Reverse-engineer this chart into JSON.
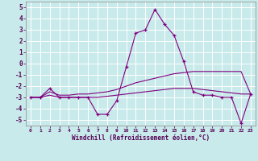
{
  "xlabel": "Windchill (Refroidissement éolien,°C)",
  "background_color": "#c8eaea",
  "grid_color": "#b8d8d8",
  "line_color": "#800080",
  "xlim": [
    -0.5,
    23.5
  ],
  "ylim": [
    -5.5,
    5.5
  ],
  "yticks": [
    -5,
    -4,
    -3,
    -2,
    -1,
    0,
    1,
    2,
    3,
    4,
    5
  ],
  "xticks": [
    0,
    1,
    2,
    3,
    4,
    5,
    6,
    7,
    8,
    9,
    10,
    11,
    12,
    13,
    14,
    15,
    16,
    17,
    18,
    19,
    20,
    21,
    22,
    23
  ],
  "hours": [
    0,
    1,
    2,
    3,
    4,
    5,
    6,
    7,
    8,
    9,
    10,
    11,
    12,
    13,
    14,
    15,
    16,
    17,
    18,
    19,
    20,
    21,
    22,
    23
  ],
  "main_values": [
    -3.0,
    -3.0,
    -2.2,
    -3.0,
    -3.0,
    -3.0,
    -3.0,
    -4.5,
    -4.5,
    -3.3,
    -0.3,
    2.7,
    3.0,
    4.8,
    3.5,
    2.5,
    0.2,
    -2.5,
    -2.8,
    -2.8,
    -3.0,
    -3.0,
    -5.3,
    -2.7
  ],
  "trend1_values": [
    -3.0,
    -3.0,
    -2.5,
    -2.8,
    -2.8,
    -2.7,
    -2.7,
    -2.6,
    -2.5,
    -2.3,
    -2.0,
    -1.7,
    -1.5,
    -1.3,
    -1.1,
    -0.9,
    -0.8,
    -0.7,
    -0.7,
    -0.7,
    -0.7,
    -0.7,
    -0.7,
    -2.7
  ],
  "trend2_values": [
    -3.0,
    -3.0,
    -2.8,
    -3.0,
    -3.0,
    -3.0,
    -3.0,
    -3.0,
    -2.9,
    -2.8,
    -2.7,
    -2.6,
    -2.5,
    -2.4,
    -2.3,
    -2.2,
    -2.2,
    -2.2,
    -2.3,
    -2.4,
    -2.5,
    -2.6,
    -2.7,
    -2.7
  ]
}
